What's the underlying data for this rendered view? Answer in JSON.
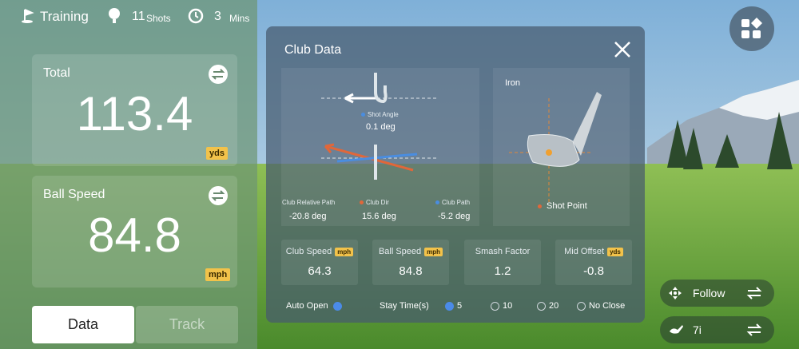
{
  "top_bar": {
    "mode": "Training",
    "shots": 11,
    "shots_unit": "Shots",
    "time": 3,
    "time_unit": "Mins"
  },
  "cards": [
    {
      "label": "Total",
      "value": 113.4,
      "unit": "yds"
    },
    {
      "label": "Ball Speed",
      "value": 84.8,
      "unit": "mph"
    }
  ],
  "tabs": [
    "Data",
    "Track"
  ],
  "modal": {
    "title": "Club Data",
    "shot_angle": {
      "label": "Shot Angle",
      "value": "0.1 deg"
    },
    "paths": [
      {
        "label": "Club Relative Path",
        "value": "-20.8 deg"
      },
      {
        "label": "Club Dir",
        "value": "15.6 deg"
      },
      {
        "label": "Club Path",
        "value": "-5.2 deg"
      }
    ],
    "impact": {
      "club": "Iron",
      "label": "Shot Point"
    },
    "metrics": [
      {
        "label": "Club Speed",
        "unit": "mph",
        "value": 64.3
      },
      {
        "label": "Ball Speed",
        "unit": "mph",
        "value": 84.8
      },
      {
        "label": "Smash Factor",
        "value": 1.2
      },
      {
        "label": "Mid Offset",
        "unit": "yds",
        "value": -0.8
      }
    ],
    "auto_open": "Auto Open",
    "stay_time": {
      "label": "Stay Time(s)",
      "options": [
        5,
        10,
        20,
        "No Close"
      ]
    }
  },
  "controls": {
    "camera": "Follow",
    "club": "7i"
  }
}
